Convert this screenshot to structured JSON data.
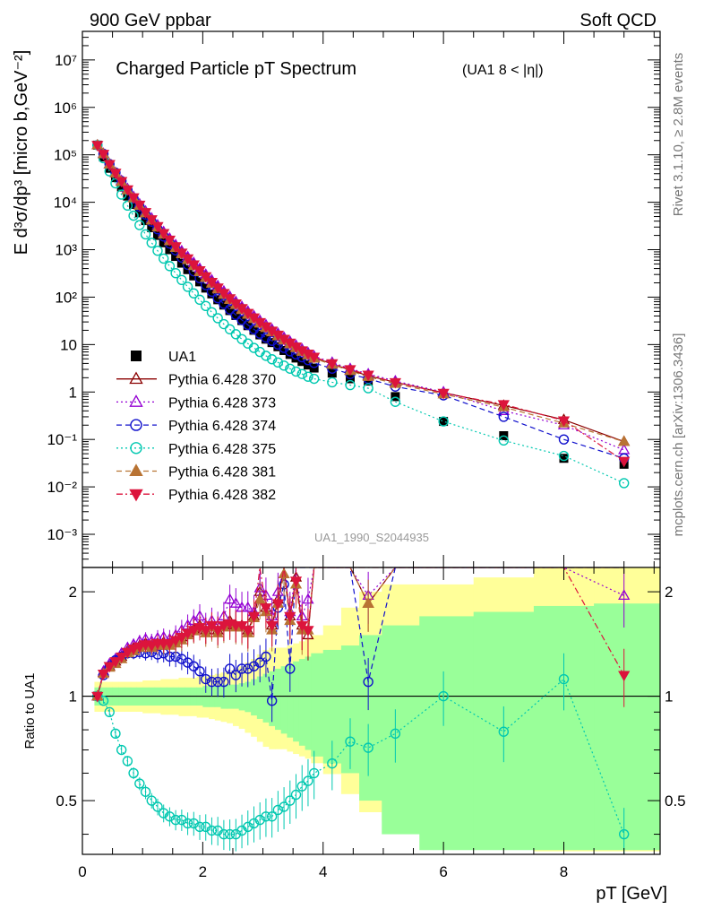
{
  "header": {
    "left": "900 GeV ppbar",
    "right": "Soft QCD",
    "side_top": "Rivet 3.1.10, ≥ 2.8M events",
    "side_bottom": "mcplots.cern.ch [arXiv:1306.3436]"
  },
  "chart_data": {
    "type": "scatter",
    "title": "Charged Particle pT Spectrum",
    "title_note": "(UA1   8 < |η|)",
    "analysis_label": "UA1_1990_S2044935",
    "xlabel": "pT [GeV]",
    "ylabel": "E d³σ/dp³ [micro b,GeV⁻²]",
    "ratio_ylabel": "Ratio to UA1",
    "xlim": [
      0,
      9.6
    ],
    "ylim": [
      0.0002,
      40000000
    ],
    "yscale": "log",
    "ratio_ylim": [
      0.35,
      2.35
    ],
    "ratio_yscale": "log",
    "x_ticks": [
      "0",
      "2",
      "4",
      "6",
      "8"
    ],
    "y_ticks": [
      "10⁻³",
      "10⁻²",
      "10⁻¹",
      "1",
      "10",
      "10²",
      "10³",
      "10⁴",
      "10⁵",
      "10⁶",
      "10⁷"
    ],
    "ratio_ticks": [
      "0.5",
      "1",
      "2"
    ],
    "legend_position": "left-middle",
    "x": [
      0.25,
      0.35,
      0.45,
      0.55,
      0.65,
      0.75,
      0.85,
      0.95,
      1.05,
      1.15,
      1.25,
      1.35,
      1.45,
      1.55,
      1.65,
      1.75,
      1.85,
      1.95,
      2.05,
      2.15,
      2.25,
      2.35,
      2.45,
      2.55,
      2.65,
      2.75,
      2.85,
      2.95,
      3.05,
      3.15,
      3.25,
      3.35,
      3.45,
      3.55,
      3.65,
      3.75,
      3.85,
      4.15,
      4.45,
      4.75,
      5.2,
      6.0,
      7.0,
      8.0,
      9.0
    ],
    "series": [
      {
        "name": "UA1",
        "color": "#000000",
        "marker": "square-filled",
        "values": [
          160000,
          90000,
          52000,
          33000,
          21000,
          13500,
          9000,
          6000,
          4100,
          2900,
          2000,
          1400,
          1000,
          720,
          520,
          380,
          280,
          210,
          155,
          117,
          88,
          68,
          52,
          41,
          32,
          25,
          20,
          16,
          13,
          11,
          9,
          7.5,
          6.2,
          5.2,
          4.4,
          3.7,
          3.2,
          2.5,
          1.9,
          1.7,
          0.8,
          0.24,
          0.12,
          0.04,
          0.03
        ]
      },
      {
        "name": "Pythia 6.428 370",
        "color": "#8B0000",
        "marker": "triangle-up-open",
        "line": "solid",
        "values": [
          160000,
          105000,
          63000,
          41000,
          27500,
          18500,
          12500,
          8800,
          6100,
          4300,
          3100,
          2200,
          1600,
          1150,
          850,
          650,
          480,
          360,
          270,
          205,
          155,
          118,
          92,
          72,
          57,
          45,
          36,
          29,
          23,
          19,
          15.5,
          12.7,
          10.5,
          8.7,
          7.3,
          6.2,
          5.3,
          3.9,
          2.9,
          2.2,
          1.6,
          0.97,
          0.52,
          0.26,
          0.09
        ]
      },
      {
        "name": "Pythia 6.428 373",
        "color": "#9400D3",
        "marker": "triangle-up-open",
        "line": "dotted",
        "values": [
          160000,
          106000,
          64000,
          42000,
          28500,
          19200,
          13100,
          9200,
          6450,
          4600,
          3300,
          2380,
          1730,
          1260,
          940,
          710,
          530,
          400,
          300,
          228,
          173,
          133,
          103,
          80,
          63,
          50,
          40,
          32,
          26,
          21,
          17.2,
          14.1,
          11.6,
          9.6,
          8.0,
          6.7,
          5.7,
          4.2,
          3.1,
          2.4,
          1.7,
          1.0,
          0.4,
          0.2,
          0.06
        ]
      },
      {
        "name": "Pythia 6.428 374",
        "color": "#1010CC",
        "marker": "circle-open",
        "line": "dashed",
        "values": [
          160000,
          105000,
          64000,
          42000,
          28000,
          18000,
          12000,
          8100,
          5500,
          3900,
          2700,
          1900,
          1350,
          970,
          680,
          480,
          350,
          250,
          180,
          130,
          95,
          72,
          55,
          42,
          33,
          26,
          21,
          17,
          14,
          12,
          10,
          8.5,
          7.2,
          6.2,
          5.4,
          4.7,
          4.1,
          3.1,
          2.4,
          1.9,
          1.3,
          0.85,
          0.3,
          0.1,
          0.04
        ]
      },
      {
        "name": "Pythia 6.428 375",
        "color": "#00C8B0",
        "marker": "circle-open",
        "line": "dotted",
        "values": [
          160000,
          85000,
          45000,
          25000,
          14500,
          8500,
          5200,
          3300,
          2100,
          1400,
          950,
          650,
          450,
          320,
          230,
          165,
          120,
          88,
          65,
          48,
          36,
          27,
          21,
          16.5,
          13,
          10.5,
          8.5,
          7,
          5.8,
          4.9,
          4.2,
          3.6,
          3.1,
          2.7,
          2.4,
          2.1,
          1.9,
          1.6,
          1.4,
          1.2,
          0.62,
          0.24,
          0.095,
          0.045,
          0.012
        ]
      },
      {
        "name": "Pythia 6.428 381",
        "color": "#B87333",
        "marker": "triangle-up-filled",
        "line": "dashed",
        "values": [
          160000,
          104000,
          63000,
          41000,
          27000,
          18000,
          12200,
          8500,
          5900,
          4150,
          2950,
          2100,
          1520,
          1100,
          810,
          610,
          455,
          340,
          255,
          194,
          147,
          113,
          88,
          69,
          54,
          43,
          35,
          28,
          22.5,
          18.3,
          15,
          12.3,
          10.2,
          8.5,
          7.1,
          6.0,
          5.1,
          3.8,
          2.8,
          2.1,
          1.5,
          0.9,
          0.48,
          0.22,
          0.09
        ]
      },
      {
        "name": "Pythia 6.428 382",
        "color": "#DC143C",
        "marker": "triangle-down-filled",
        "line": "dashdot",
        "values": [
          160000,
          104000,
          63500,
          41500,
          27800,
          18600,
          12600,
          8800,
          6150,
          4350,
          3120,
          2230,
          1610,
          1170,
          860,
          650,
          485,
          365,
          273,
          208,
          158,
          121,
          94,
          73,
          58,
          46,
          37,
          29.5,
          24,
          19.5,
          16,
          13.1,
          10.9,
          9.0,
          7.5,
          6.4,
          5.5,
          4.0,
          3.0,
          2.3,
          1.6,
          0.95,
          0.55,
          0.25,
          0.035
        ]
      }
    ],
    "ratio": {
      "reference": 1,
      "x": [
        0.25,
        0.35,
        0.45,
        0.55,
        0.65,
        0.75,
        0.85,
        0.95,
        1.05,
        1.15,
        1.25,
        1.35,
        1.45,
        1.55,
        1.65,
        1.75,
        1.85,
        1.95,
        2.05,
        2.15,
        2.25,
        2.35,
        2.45,
        2.55,
        2.65,
        2.75,
        2.85,
        2.95,
        3.05,
        3.15,
        3.25,
        3.35,
        3.45,
        3.55,
        3.65,
        3.75,
        3.85,
        4.15,
        4.45,
        4.75,
        5.2,
        6.0,
        7.0,
        8.0,
        9.0
      ],
      "series": [
        {
          "name": "Pythia 6.428 370",
          "values": [
            1.0,
            1.17,
            1.22,
            1.26,
            1.3,
            1.35,
            1.38,
            1.4,
            1.42,
            1.4,
            1.42,
            1.43,
            1.42,
            1.45,
            1.48,
            1.52,
            1.56,
            1.6,
            1.55,
            1.6,
            1.55,
            1.6,
            1.65,
            1.6,
            1.6,
            1.55,
            1.7,
            2.0,
            1.8,
            1.6,
            1.9,
            2.4,
            1.7,
            2.2,
            1.6,
            1.5,
            2.4,
            2.4,
            2.4,
            1.85,
            2.4,
            2.4,
            2.4,
            2.4,
            2.4
          ]
        },
        {
          "name": "Pythia 6.428 373",
          "values": [
            1.0,
            1.18,
            1.24,
            1.28,
            1.33,
            1.38,
            1.41,
            1.44,
            1.46,
            1.44,
            1.47,
            1.48,
            1.46,
            1.5,
            1.55,
            1.6,
            1.65,
            1.7,
            1.6,
            1.65,
            1.6,
            1.7,
            1.9,
            1.85,
            1.8,
            1.8,
            1.75,
            2.05,
            1.95,
            1.7,
            2.0,
            2.45,
            1.75,
            2.3,
            1.7,
            1.9,
            2.4,
            2.4,
            2.4,
            1.95,
            2.4,
            2.4,
            2.4,
            2.4,
            1.95
          ]
        },
        {
          "name": "Pythia 6.428 374",
          "values": [
            1.0,
            1.15,
            1.22,
            1.27,
            1.3,
            1.33,
            1.33,
            1.34,
            1.33,
            1.34,
            1.32,
            1.33,
            1.3,
            1.3,
            1.28,
            1.25,
            1.22,
            1.18,
            1.12,
            1.1,
            1.1,
            1.1,
            1.2,
            1.15,
            1.2,
            1.2,
            1.22,
            1.25,
            1.3,
            0.97,
            1.8,
            2.1,
            1.2,
            2.4,
            2.4,
            2.4,
            2.4,
            2.4,
            2.4,
            1.1,
            2.4,
            2.4,
            2.4,
            2.35,
            2.4
          ]
        },
        {
          "name": "Pythia 6.428 375",
          "values": [
            1.0,
            0.97,
            0.9,
            0.78,
            0.7,
            0.65,
            0.6,
            0.56,
            0.53,
            0.5,
            0.48,
            0.46,
            0.45,
            0.44,
            0.44,
            0.43,
            0.43,
            0.42,
            0.42,
            0.41,
            0.41,
            0.4,
            0.4,
            0.4,
            0.41,
            0.42,
            0.43,
            0.44,
            0.45,
            0.45,
            0.47,
            0.48,
            0.5,
            0.52,
            0.55,
            0.57,
            0.6,
            0.64,
            0.74,
            0.71,
            0.78,
            1.0,
            0.79,
            1.12,
            0.4
          ]
        },
        {
          "name": "Pythia 6.428 381",
          "values": [
            1.0,
            1.16,
            1.21,
            1.24,
            1.28,
            1.33,
            1.35,
            1.38,
            1.4,
            1.38,
            1.4,
            1.4,
            1.4,
            1.42,
            1.45,
            1.5,
            1.54,
            1.58,
            1.52,
            1.58,
            1.52,
            1.58,
            1.62,
            1.58,
            1.58,
            1.52,
            1.68,
            1.9,
            1.75,
            1.55,
            1.85,
            2.25,
            1.65,
            2.1,
            1.55,
            1.55,
            2.4,
            2.4,
            2.4,
            1.85,
            2.4,
            2.4,
            2.4,
            2.4,
            2.4
          ]
        },
        {
          "name": "Pythia 6.428 382",
          "values": [
            1.0,
            1.16,
            1.22,
            1.26,
            1.3,
            1.34,
            1.37,
            1.39,
            1.41,
            1.4,
            1.42,
            1.42,
            1.42,
            1.45,
            1.48,
            1.52,
            1.55,
            1.58,
            1.55,
            1.6,
            1.55,
            1.6,
            1.62,
            1.6,
            1.6,
            1.55,
            1.7,
            2.4,
            1.8,
            1.6,
            1.85,
            2.35,
            1.7,
            2.15,
            1.6,
            1.55,
            2.4,
            2.4,
            2.4,
            2.4,
            2.4,
            2.4,
            2.4,
            2.4,
            1.15
          ]
        }
      ]
    }
  }
}
